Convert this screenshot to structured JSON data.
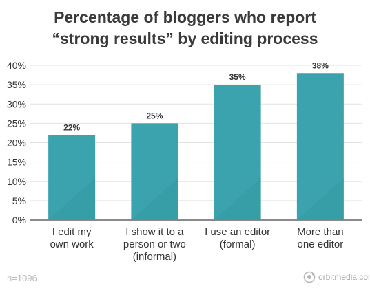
{
  "chart_data": {
    "type": "bar",
    "title_lines": [
      "Percentage of bloggers who report",
      "“strong results” by editing process"
    ],
    "categories": [
      [
        "I edit my",
        "own work"
      ],
      [
        "I show it to a",
        "person or two",
        "(informal)"
      ],
      [
        "I use an editor",
        "(formal)"
      ],
      [
        "More than",
        "one editor"
      ]
    ],
    "values": [
      22,
      25,
      35,
      38
    ],
    "data_labels": [
      "22%",
      "25%",
      "35%",
      "38%"
    ],
    "ylim": [
      0,
      40
    ],
    "yticks": [
      "0%",
      "5%",
      "10%",
      "15%",
      "20%",
      "25%",
      "30%",
      "35%",
      "40%"
    ],
    "ytick_values": [
      0,
      5,
      10,
      15,
      20,
      25,
      30,
      35,
      40
    ],
    "grid": true,
    "colors": {
      "bar": "#3aa3ae",
      "bar_shade": "#2f8f99",
      "grid": "#e3e3e3",
      "axis": "#444444"
    }
  },
  "footer": {
    "sample": "n=1096",
    "brand": "orbitmedia.com"
  }
}
